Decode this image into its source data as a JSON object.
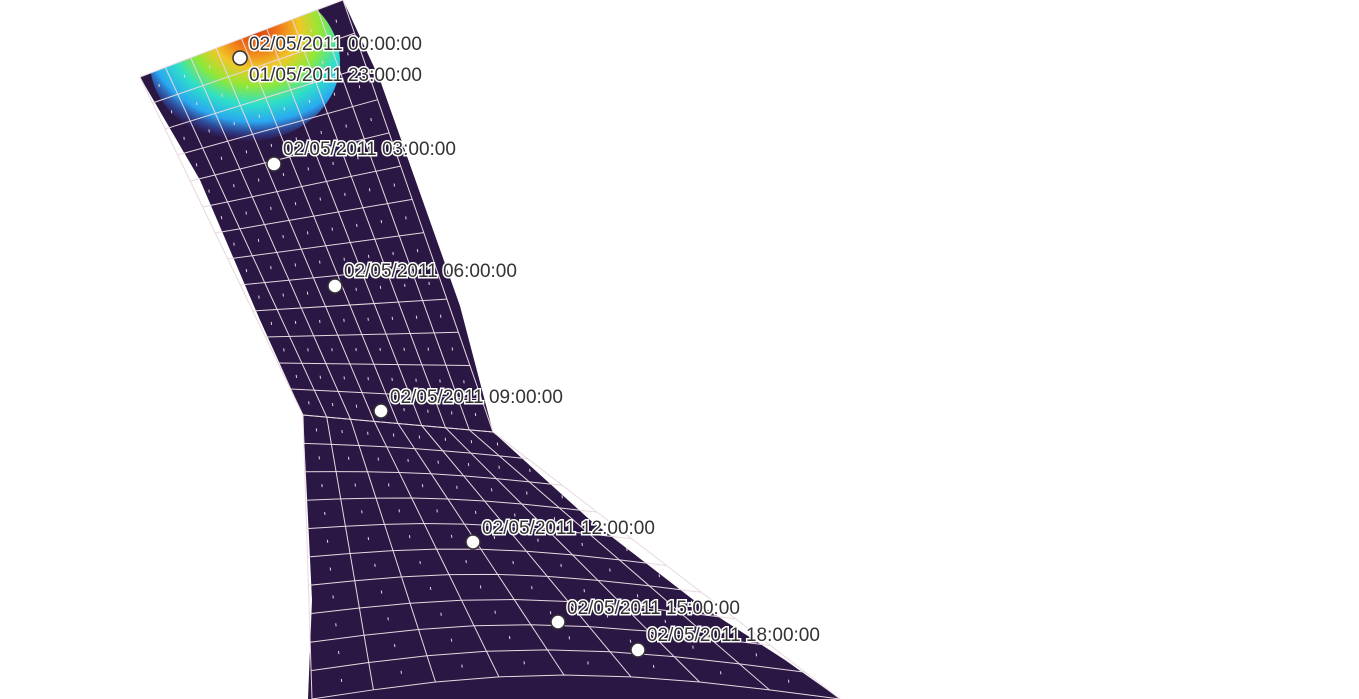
{
  "map": {
    "mesh_fill_color": "#2b1744",
    "mesh_line_color": "#e8d8e0",
    "marker_fill_color": "#ffffff",
    "marker_stroke_color": "#333333",
    "label_color": "#333333",
    "plume_colors": [
      "#3a4fd8",
      "#2aa8f0",
      "#2fe0c8",
      "#8fe838",
      "#f0c828",
      "#f07818",
      "#d83a10"
    ]
  },
  "track": {
    "points": [
      {
        "label": "02/05/2011 00:00:00"
      },
      {
        "label": "01/05/2011 23:00:00"
      },
      {
        "label": "02/05/2011 03:00:00"
      },
      {
        "label": "02/05/2011 06:00:00"
      },
      {
        "label": "02/05/2011 09:00:00"
      },
      {
        "label": "02/05/2011 12:00:00"
      },
      {
        "label": "02/05/2011 15:00:00"
      },
      {
        "label": "02/05/2011 18:00:00"
      }
    ]
  }
}
